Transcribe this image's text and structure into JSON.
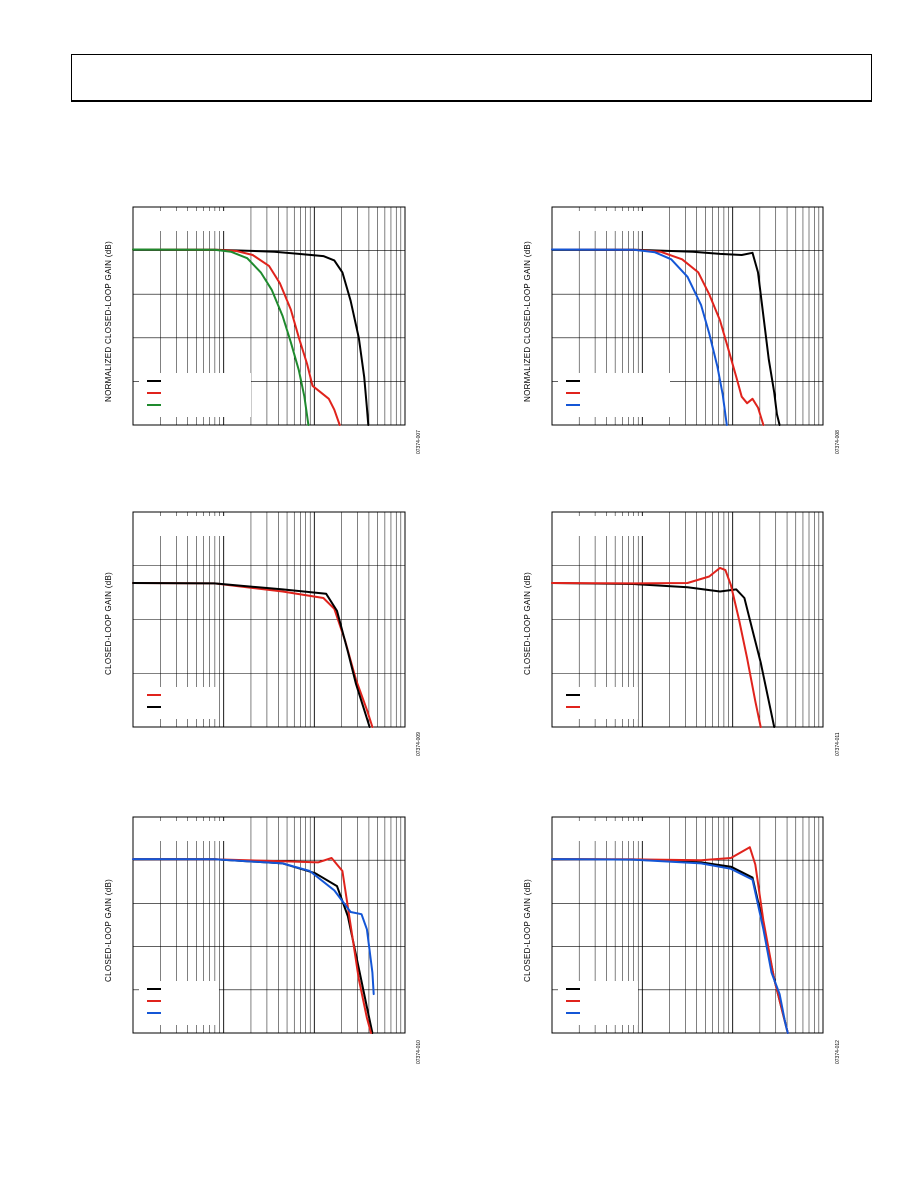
{
  "page": {
    "header_text": ""
  },
  "charts": [
    {
      "id": "c1",
      "ylabel": "NORMALIZED CLOSED-LOOP GAIN (dB)",
      "figure_id": "07374-007",
      "legend": [
        "#000000",
        "#e0231c",
        "#1f8a2e"
      ],
      "series": [
        {
          "color": "#000000",
          "points": [
            [
              0,
              0.195
            ],
            [
              0.3,
              0.196
            ],
            [
              0.52,
              0.205
            ],
            [
              0.62,
              0.216
            ],
            [
              0.7,
              0.225
            ],
            [
              0.74,
              0.245
            ],
            [
              0.77,
              0.3
            ],
            [
              0.8,
              0.43
            ],
            [
              0.83,
              0.6
            ],
            [
              0.85,
              0.78
            ],
            [
              0.86,
              0.92
            ],
            [
              0.865,
              1.0
            ]
          ]
        },
        {
          "color": "#e0231c",
          "points": [
            [
              0,
              0.195
            ],
            [
              0.3,
              0.196
            ],
            [
              0.38,
              0.202
            ],
            [
              0.44,
              0.22
            ],
            [
              0.5,
              0.27
            ],
            [
              0.54,
              0.35
            ],
            [
              0.58,
              0.47
            ],
            [
              0.61,
              0.6
            ],
            [
              0.64,
              0.72
            ],
            [
              0.66,
              0.82
            ],
            [
              0.69,
              0.85
            ],
            [
              0.72,
              0.88
            ],
            [
              0.74,
              0.93
            ],
            [
              0.76,
              1.0
            ]
          ]
        },
        {
          "color": "#1f8a2e",
          "points": [
            [
              0,
              0.195
            ],
            [
              0.3,
              0.196
            ],
            [
              0.36,
              0.205
            ],
            [
              0.42,
              0.235
            ],
            [
              0.47,
              0.3
            ],
            [
              0.51,
              0.38
            ],
            [
              0.55,
              0.5
            ],
            [
              0.58,
              0.62
            ],
            [
              0.61,
              0.75
            ],
            [
              0.63,
              0.87
            ],
            [
              0.645,
              1.0
            ]
          ]
        }
      ]
    },
    {
      "id": "c2",
      "ylabel": "NORMALIZED CLOSED-LOOP GAIN (dB)",
      "figure_id": "07374-008",
      "legend": [
        "#000000",
        "#e0231c",
        "#1456d6"
      ],
      "series": [
        {
          "color": "#000000",
          "points": [
            [
              0,
              0.195
            ],
            [
              0.3,
              0.196
            ],
            [
              0.52,
              0.205
            ],
            [
              0.62,
              0.215
            ],
            [
              0.7,
              0.22
            ],
            [
              0.74,
              0.21
            ],
            [
              0.76,
              0.3
            ],
            [
              0.78,
              0.5
            ],
            [
              0.8,
              0.7
            ],
            [
              0.82,
              0.85
            ],
            [
              0.83,
              0.95
            ],
            [
              0.84,
              1.0
            ]
          ]
        },
        {
          "color": "#e0231c",
          "points": [
            [
              0,
              0.195
            ],
            [
              0.3,
              0.196
            ],
            [
              0.4,
              0.205
            ],
            [
              0.48,
              0.24
            ],
            [
              0.54,
              0.3
            ],
            [
              0.58,
              0.4
            ],
            [
              0.62,
              0.52
            ],
            [
              0.65,
              0.65
            ],
            [
              0.68,
              0.78
            ],
            [
              0.7,
              0.87
            ],
            [
              0.72,
              0.9
            ],
            [
              0.74,
              0.88
            ],
            [
              0.76,
              0.92
            ],
            [
              0.78,
              1.0
            ]
          ]
        },
        {
          "color": "#1456d6",
          "points": [
            [
              0,
              0.195
            ],
            [
              0.3,
              0.196
            ],
            [
              0.38,
              0.208
            ],
            [
              0.44,
              0.24
            ],
            [
              0.5,
              0.32
            ],
            [
              0.55,
              0.45
            ],
            [
              0.58,
              0.58
            ],
            [
              0.61,
              0.73
            ],
            [
              0.63,
              0.86
            ],
            [
              0.645,
              1.0
            ]
          ]
        }
      ]
    },
    {
      "id": "c3",
      "ylabel": "CLOSED-LOOP GAIN (dB)",
      "figure_id": "07374-009",
      "legend": [
        "#e0231c",
        "#000000"
      ],
      "series": [
        {
          "color": "#e0231c",
          "points": [
            [
              0,
              0.33
            ],
            [
              0.3,
              0.332
            ],
            [
              0.55,
              0.37
            ],
            [
              0.7,
              0.4
            ],
            [
              0.74,
              0.45
            ],
            [
              0.78,
              0.6
            ],
            [
              0.82,
              0.78
            ],
            [
              0.86,
              0.92
            ],
            [
              0.88,
              1.0
            ]
          ]
        },
        {
          "color": "#000000",
          "points": [
            [
              0,
              0.33
            ],
            [
              0.3,
              0.332
            ],
            [
              0.55,
              0.36
            ],
            [
              0.71,
              0.38
            ],
            [
              0.75,
              0.46
            ],
            [
              0.79,
              0.65
            ],
            [
              0.82,
              0.8
            ],
            [
              0.85,
              0.92
            ],
            [
              0.87,
              1.0
            ]
          ]
        }
      ]
    },
    {
      "id": "c4",
      "ylabel": "CLOSED-LOOP GAIN (dB)",
      "figure_id": "07374-011",
      "legend": [
        "#000000",
        "#e0231c"
      ],
      "series": [
        {
          "color": "#000000",
          "points": [
            [
              0,
              0.33
            ],
            [
              0.3,
              0.335
            ],
            [
              0.5,
              0.35
            ],
            [
              0.62,
              0.37
            ],
            [
              0.68,
              0.36
            ],
            [
              0.71,
              0.4
            ],
            [
              0.74,
              0.55
            ],
            [
              0.77,
              0.7
            ],
            [
              0.8,
              0.88
            ],
            [
              0.82,
              1.0
            ]
          ]
        },
        {
          "color": "#e0231c",
          "points": [
            [
              0,
              0.33
            ],
            [
              0.3,
              0.332
            ],
            [
              0.5,
              0.33
            ],
            [
              0.58,
              0.3
            ],
            [
              0.62,
              0.26
            ],
            [
              0.64,
              0.27
            ],
            [
              0.66,
              0.34
            ],
            [
              0.69,
              0.5
            ],
            [
              0.72,
              0.68
            ],
            [
              0.75,
              0.88
            ],
            [
              0.77,
              1.0
            ]
          ]
        }
      ]
    },
    {
      "id": "c5",
      "ylabel": "CLOSED-LOOP GAIN (dB)",
      "figure_id": "07374-010",
      "legend": [
        "#000000",
        "#e0231c",
        "#1456d6"
      ],
      "series": [
        {
          "color": "#000000",
          "points": [
            [
              0,
              0.195
            ],
            [
              0.3,
              0.196
            ],
            [
              0.55,
              0.215
            ],
            [
              0.67,
              0.26
            ],
            [
              0.75,
              0.32
            ],
            [
              0.79,
              0.46
            ],
            [
              0.83,
              0.7
            ],
            [
              0.86,
              0.88
            ],
            [
              0.88,
              1.0
            ]
          ]
        },
        {
          "color": "#e0231c",
          "points": [
            [
              0,
              0.195
            ],
            [
              0.3,
              0.196
            ],
            [
              0.55,
              0.205
            ],
            [
              0.68,
              0.21
            ],
            [
              0.73,
              0.19
            ],
            [
              0.77,
              0.25
            ],
            [
              0.8,
              0.5
            ],
            [
              0.83,
              0.75
            ],
            [
              0.86,
              0.93
            ],
            [
              0.875,
              1.0
            ]
          ]
        },
        {
          "color": "#1456d6",
          "points": [
            [
              0,
              0.195
            ],
            [
              0.3,
              0.196
            ],
            [
              0.55,
              0.215
            ],
            [
              0.65,
              0.25
            ],
            [
              0.74,
              0.34
            ],
            [
              0.8,
              0.44
            ],
            [
              0.84,
              0.45
            ],
            [
              0.86,
              0.52
            ],
            [
              0.88,
              0.72
            ],
            [
              0.885,
              0.82
            ]
          ]
        }
      ]
    },
    {
      "id": "c6",
      "ylabel": "CLOSED-LOOP GAIN (dB)",
      "figure_id": "07374-012",
      "legend": [
        "#000000",
        "#e0231c",
        "#1456d6"
      ],
      "series": [
        {
          "color": "#000000",
          "points": [
            [
              0,
              0.195
            ],
            [
              0.3,
              0.197
            ],
            [
              0.55,
              0.21
            ],
            [
              0.66,
              0.23
            ],
            [
              0.74,
              0.28
            ],
            [
              0.78,
              0.5
            ],
            [
              0.82,
              0.75
            ],
            [
              0.86,
              0.95
            ],
            [
              0.87,
              1.0
            ]
          ]
        },
        {
          "color": "#e0231c",
          "points": [
            [
              0,
              0.195
            ],
            [
              0.3,
              0.196
            ],
            [
              0.55,
              0.2
            ],
            [
              0.66,
              0.19
            ],
            [
              0.73,
              0.14
            ],
            [
              0.75,
              0.22
            ],
            [
              0.78,
              0.48
            ],
            [
              0.82,
              0.75
            ],
            [
              0.86,
              0.95
            ],
            [
              0.87,
              1.0
            ]
          ]
        },
        {
          "color": "#1456d6",
          "points": [
            [
              0,
              0.195
            ],
            [
              0.3,
              0.197
            ],
            [
              0.55,
              0.215
            ],
            [
              0.66,
              0.24
            ],
            [
              0.74,
              0.29
            ],
            [
              0.78,
              0.52
            ],
            [
              0.81,
              0.72
            ],
            [
              0.84,
              0.82
            ],
            [
              0.86,
              0.95
            ],
            [
              0.87,
              1.0
            ]
          ]
        }
      ]
    }
  ]
}
